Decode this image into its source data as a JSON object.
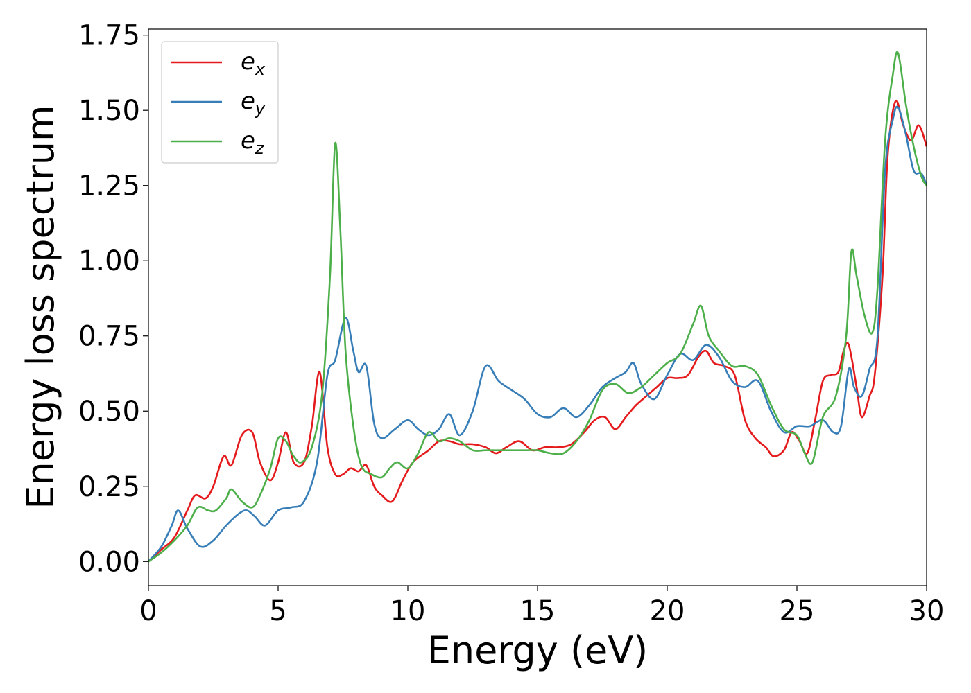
{
  "chart_data": {
    "type": "line",
    "xlabel": "Energy (eV)",
    "ylabel": "Energy loss spectrum",
    "xlim": [
      0,
      30
    ],
    "ylim": [
      -0.08,
      1.77
    ],
    "xticks": [
      0,
      5,
      10,
      15,
      20,
      25,
      30
    ],
    "xtick_labels": [
      "0",
      "5",
      "10",
      "15",
      "20",
      "25",
      "30"
    ],
    "yticks": [
      0.0,
      0.25,
      0.5,
      0.75,
      1.0,
      1.25,
      1.5,
      1.75
    ],
    "ytick_labels": [
      "0.00",
      "0.25",
      "0.50",
      "0.75",
      "1.00",
      "1.25",
      "1.50",
      "1.75"
    ],
    "grid": false,
    "legend_position": "top-left",
    "series": [
      {
        "name": "e_x",
        "label_main": "e",
        "label_sub": "x",
        "color": "#e41a1c",
        "x": [
          0,
          0.5,
          1.0,
          1.5,
          1.8,
          2.2,
          2.5,
          2.9,
          3.2,
          3.6,
          4.0,
          4.3,
          4.7,
          5.0,
          5.3,
          5.6,
          6.0,
          6.3,
          6.6,
          6.9,
          7.2,
          7.5,
          7.8,
          8.1,
          8.4,
          8.7,
          9.0,
          9.4,
          9.8,
          10.2,
          10.8,
          11.2,
          11.6,
          12.0,
          12.5,
          13.0,
          13.4,
          13.8,
          14.3,
          14.8,
          15.3,
          15.8,
          16.3,
          16.8,
          17.2,
          17.6,
          18.0,
          18.4,
          18.8,
          19.2,
          19.6,
          20.0,
          20.4,
          20.8,
          21.2,
          21.5,
          21.8,
          22.2,
          22.6,
          23.0,
          23.4,
          23.8,
          24.1,
          24.5,
          24.8,
          25.1,
          25.4,
          25.7,
          26.0,
          26.3,
          26.6,
          26.8,
          27.0,
          27.3,
          27.5,
          27.8,
          28.0,
          28.3,
          28.5,
          28.8,
          29.1,
          29.4,
          29.7,
          30.0
        ],
        "y": [
          0.0,
          0.04,
          0.08,
          0.17,
          0.22,
          0.21,
          0.25,
          0.35,
          0.32,
          0.42,
          0.43,
          0.33,
          0.27,
          0.33,
          0.43,
          0.33,
          0.33,
          0.45,
          0.63,
          0.38,
          0.29,
          0.29,
          0.31,
          0.3,
          0.32,
          0.25,
          0.22,
          0.2,
          0.27,
          0.33,
          0.37,
          0.4,
          0.4,
          0.39,
          0.39,
          0.38,
          0.36,
          0.38,
          0.4,
          0.37,
          0.38,
          0.38,
          0.39,
          0.43,
          0.47,
          0.48,
          0.44,
          0.48,
          0.52,
          0.55,
          0.58,
          0.61,
          0.61,
          0.62,
          0.68,
          0.7,
          0.66,
          0.65,
          0.62,
          0.47,
          0.41,
          0.38,
          0.35,
          0.37,
          0.43,
          0.4,
          0.36,
          0.47,
          0.6,
          0.62,
          0.63,
          0.7,
          0.72,
          0.58,
          0.48,
          0.55,
          0.62,
          0.95,
          1.35,
          1.53,
          1.45,
          1.4,
          1.45,
          1.38
        ]
      },
      {
        "name": "e_y",
        "label_main": "e",
        "label_sub": "y",
        "color": "#377eb8",
        "x": [
          0,
          0.5,
          0.9,
          1.15,
          1.5,
          2.0,
          2.5,
          3.0,
          3.5,
          3.8,
          4.1,
          4.5,
          5.0,
          5.5,
          6.0,
          6.5,
          6.9,
          7.2,
          7.6,
          7.9,
          8.1,
          8.4,
          8.7,
          9.0,
          9.5,
          10.0,
          10.4,
          10.8,
          11.2,
          11.6,
          12.0,
          12.5,
          13.0,
          13.5,
          14.0,
          14.5,
          15.0,
          15.5,
          16.0,
          16.5,
          17.0,
          17.5,
          18.0,
          18.4,
          18.7,
          19.0,
          19.5,
          20.0,
          20.5,
          21.0,
          21.5,
          22.0,
          22.5,
          23.0,
          23.5,
          24.0,
          24.5,
          25.0,
          25.5,
          26.0,
          26.4,
          26.7,
          27.0,
          27.2,
          27.5,
          27.8,
          28.1,
          28.4,
          28.7,
          28.9,
          29.2,
          29.5,
          29.8,
          30.0
        ],
        "y": [
          0.0,
          0.05,
          0.12,
          0.17,
          0.11,
          0.05,
          0.07,
          0.12,
          0.16,
          0.17,
          0.15,
          0.12,
          0.17,
          0.18,
          0.2,
          0.33,
          0.62,
          0.67,
          0.81,
          0.7,
          0.63,
          0.65,
          0.46,
          0.41,
          0.44,
          0.47,
          0.44,
          0.42,
          0.44,
          0.49,
          0.42,
          0.5,
          0.65,
          0.6,
          0.57,
          0.54,
          0.49,
          0.48,
          0.51,
          0.48,
          0.52,
          0.58,
          0.61,
          0.63,
          0.66,
          0.59,
          0.54,
          0.62,
          0.69,
          0.67,
          0.72,
          0.68,
          0.6,
          0.58,
          0.6,
          0.5,
          0.43,
          0.45,
          0.45,
          0.47,
          0.43,
          0.45,
          0.64,
          0.58,
          0.55,
          0.64,
          0.74,
          1.3,
          1.47,
          1.51,
          1.42,
          1.3,
          1.29,
          1.25
        ]
      },
      {
        "name": "e_z",
        "label_main": "e",
        "label_sub": "z",
        "color": "#4daf4a",
        "x": [
          0,
          0.5,
          1.0,
          1.5,
          1.9,
          2.3,
          2.6,
          3.0,
          3.2,
          3.6,
          4.0,
          4.3,
          4.7,
          5.0,
          5.3,
          5.6,
          5.9,
          6.3,
          6.7,
          7.0,
          7.2,
          7.4,
          7.6,
          7.9,
          8.2,
          8.6,
          9.0,
          9.3,
          9.6,
          10.0,
          10.4,
          10.8,
          11.2,
          11.6,
          12.0,
          12.5,
          13.0,
          13.5,
          14.0,
          14.5,
          15.0,
          15.5,
          16.0,
          16.5,
          17.0,
          17.5,
          18.0,
          18.5,
          19.0,
          19.5,
          20.0,
          20.5,
          21.0,
          21.3,
          21.6,
          22.0,
          22.5,
          23.0,
          23.5,
          24.0,
          24.5,
          25.0,
          25.3,
          25.6,
          26.0,
          26.5,
          26.9,
          27.1,
          27.3,
          27.6,
          27.9,
          28.1,
          28.4,
          28.7,
          28.9,
          29.2,
          29.5,
          29.8,
          30.0
        ],
        "y": [
          0.0,
          0.03,
          0.07,
          0.12,
          0.18,
          0.17,
          0.17,
          0.21,
          0.24,
          0.2,
          0.18,
          0.22,
          0.31,
          0.41,
          0.4,
          0.35,
          0.33,
          0.38,
          0.56,
          0.95,
          1.39,
          1.1,
          0.7,
          0.45,
          0.32,
          0.29,
          0.28,
          0.31,
          0.33,
          0.31,
          0.36,
          0.43,
          0.4,
          0.41,
          0.4,
          0.37,
          0.37,
          0.37,
          0.37,
          0.37,
          0.37,
          0.36,
          0.36,
          0.4,
          0.47,
          0.57,
          0.59,
          0.56,
          0.58,
          0.62,
          0.66,
          0.69,
          0.79,
          0.85,
          0.75,
          0.7,
          0.65,
          0.65,
          0.62,
          0.52,
          0.44,
          0.42,
          0.36,
          0.33,
          0.48,
          0.55,
          0.75,
          1.03,
          0.95,
          0.82,
          0.76,
          0.9,
          1.4,
          1.62,
          1.69,
          1.52,
          1.38,
          1.28,
          1.25
        ]
      }
    ]
  }
}
